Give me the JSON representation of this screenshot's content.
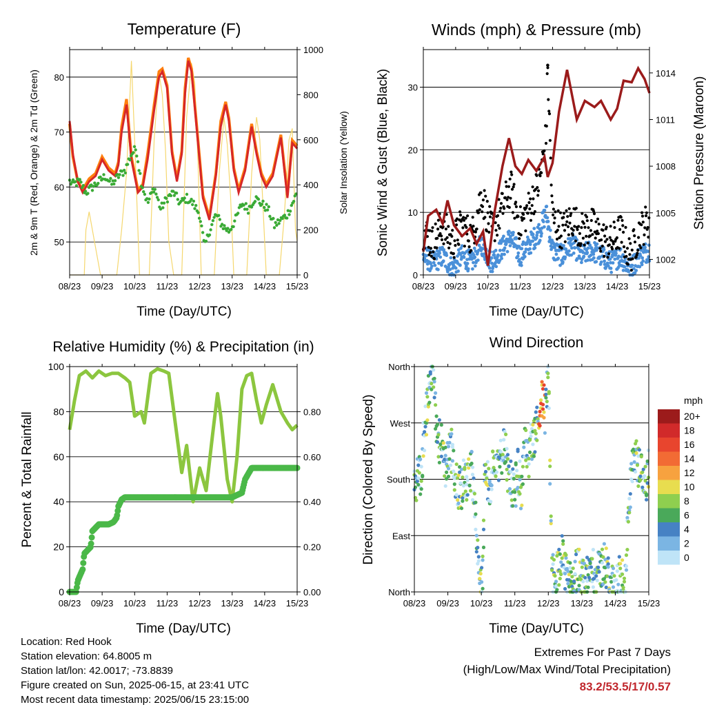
{
  "colors": {
    "temp_2m": "#d62728",
    "temp_9m": "#ff7f0e",
    "dewpoint": "#3aaa35",
    "solar": "#f5d76e",
    "wind": "#4a90d9",
    "gust": "#000000",
    "pressure": "#9b1b1b",
    "rh": "#8cc63f",
    "precip": "#4ab848",
    "extremes_text": "#c0272d"
  },
  "chart_data": [
    {
      "id": "temp",
      "type": "line",
      "title": "Temperature (F)",
      "xlabel": "Time (Day/UTC)",
      "ylabel": "2m & 9m T (Red, Orange) & 2m Td (Green)",
      "y2label": "Solar Insolation (Yellow)",
      "x_ticks": [
        "08/23",
        "09/23",
        "10/23",
        "11/23",
        "12/23",
        "13/23",
        "14/23",
        "15/23"
      ],
      "xlim": [
        0,
        7
      ],
      "ylim": [
        44,
        85
      ],
      "yticks": [
        50,
        60,
        70,
        80
      ],
      "y2lim": [
        0,
        1000
      ],
      "y2ticks": [
        0,
        200,
        400,
        600,
        800,
        1000
      ],
      "grid": true,
      "series": [
        {
          "name": "2m T (Red)",
          "axis": "left",
          "x": [
            0,
            0.1,
            0.25,
            0.4,
            0.6,
            0.8,
            1.0,
            1.2,
            1.4,
            1.5,
            1.6,
            1.75,
            1.9,
            2.1,
            2.25,
            2.4,
            2.6,
            2.75,
            2.85,
            3.0,
            3.15,
            3.3,
            3.45,
            3.55,
            3.65,
            3.75,
            3.95,
            4.1,
            4.3,
            4.5,
            4.65,
            4.8,
            4.9,
            5.05,
            5.2,
            5.4,
            5.6,
            5.75,
            5.9,
            6.05,
            6.25,
            6.5,
            6.7,
            6.85,
            7.0
          ],
          "values": [
            72,
            66,
            61,
            59,
            61,
            62,
            65,
            63,
            62,
            64,
            70,
            75,
            65,
            59,
            60,
            65,
            74,
            80,
            81,
            78,
            66,
            61,
            66,
            77,
            83,
            81,
            68,
            58,
            54,
            62,
            71,
            75,
            72,
            63,
            59,
            63,
            71,
            66,
            62,
            60,
            62,
            69,
            58,
            68,
            67
          ]
        },
        {
          "name": "9m T (Orange)",
          "axis": "left",
          "x": [
            0,
            0.1,
            0.25,
            0.4,
            0.6,
            0.8,
            1.0,
            1.2,
            1.4,
            1.5,
            1.6,
            1.75,
            1.9,
            2.1,
            2.25,
            2.4,
            2.6,
            2.75,
            2.85,
            3.0,
            3.15,
            3.3,
            3.45,
            3.55,
            3.65,
            3.75,
            3.95,
            4.1,
            4.3,
            4.5,
            4.65,
            4.8,
            4.9,
            5.05,
            5.2,
            5.4,
            5.6,
            5.75,
            5.9,
            6.05,
            6.25,
            6.5,
            6.7,
            6.85,
            7.0
          ],
          "values": [
            71.5,
            65.5,
            61,
            59.5,
            61.5,
            62.5,
            65.5,
            63.5,
            62.5,
            64.5,
            71,
            76,
            65.5,
            59.5,
            60.5,
            66,
            75,
            81,
            81.5,
            78.5,
            66.5,
            61.5,
            66.5,
            78,
            83.5,
            81.5,
            68.5,
            58.5,
            54.5,
            62.5,
            72,
            75.5,
            72.5,
            63.5,
            59.5,
            63.5,
            71.5,
            66.5,
            62.5,
            60.5,
            62.5,
            69.5,
            58.5,
            68.5,
            67.5
          ]
        },
        {
          "name": "2m Td (Green)",
          "axis": "left",
          "x": [
            0,
            0.1,
            0.3,
            0.5,
            0.7,
            0.9,
            1.1,
            1.3,
            1.5,
            1.7,
            1.9,
            2.05,
            2.2,
            2.4,
            2.6,
            2.8,
            3.0,
            3.2,
            3.4,
            3.6,
            3.8,
            4.0,
            4.15,
            4.3,
            4.5,
            4.7,
            4.9,
            5.1,
            5.3,
            5.5,
            5.7,
            5.9,
            6.1,
            6.3,
            6.5,
            6.7,
            6.85,
            7.0
          ],
          "values": [
            61,
            60.5,
            61,
            59,
            60,
            61,
            62,
            60.5,
            62,
            63,
            66,
            67,
            61,
            57,
            60,
            56,
            58,
            59,
            57,
            58,
            57,
            55,
            49,
            52,
            55,
            53,
            52,
            54,
            57,
            56,
            58,
            57,
            56,
            53,
            54,
            55,
            57,
            59
          ]
        },
        {
          "name": "Solar Insolation (Yellow)",
          "axis": "right",
          "x": [
            0,
            0.45,
            0.5,
            0.6,
            0.7,
            0.8,
            0.95,
            1.45,
            1.6,
            1.75,
            1.9,
            2.0,
            2.15,
            2.45,
            2.6,
            2.75,
            2.85,
            2.95,
            3.05,
            3.2,
            3.45,
            3.6,
            3.75,
            3.85,
            3.95,
            4.05,
            4.45,
            4.6,
            4.75,
            4.85,
            4.95,
            5.05,
            5.45,
            5.6,
            5.75,
            5.85,
            5.95,
            6.05,
            6.45,
            6.6,
            6.75,
            6.85,
            6.95,
            7.0
          ],
          "values": [
            0,
            0,
            200,
            280,
            200,
            120,
            0,
            0,
            200,
            450,
            950,
            600,
            0,
            0,
            600,
            900,
            800,
            550,
            150,
            0,
            0,
            700,
            940,
            850,
            500,
            0,
            0,
            450,
            700,
            580,
            350,
            0,
            0,
            450,
            700,
            600,
            300,
            0,
            0,
            250,
            600,
            650,
            200,
            150
          ]
        }
      ]
    },
    {
      "id": "wind",
      "type": "scatter",
      "title": "Winds (mph) & Pressure (mb)",
      "xlabel": "Time (Day/UTC)",
      "ylabel": "Sonic Wind & Gust (Blue, Black)",
      "y2label": "Station Pressure (Maroon)",
      "x_ticks": [
        "08/23",
        "09/23",
        "10/23",
        "11/23",
        "12/23",
        "13/23",
        "14/23",
        "15/23"
      ],
      "xlim": [
        0,
        7
      ],
      "ylim": [
        0,
        36
      ],
      "yticks": [
        0,
        10,
        20,
        30
      ],
      "y2lim": [
        1001.0,
        1015.5
      ],
      "y2ticks": [
        1002,
        1005,
        1008,
        1011,
        1014
      ],
      "grid": true,
      "series": [
        {
          "name": "Sonic Wind (Blue)",
          "axis": "left",
          "x": [
            0,
            0.3,
            0.6,
            0.9,
            1.2,
            1.5,
            1.8,
            2.1,
            2.4,
            2.7,
            3.0,
            3.3,
            3.6,
            3.8,
            4.0,
            4.3,
            4.6,
            4.9,
            5.2,
            5.5,
            5.8,
            6.1,
            6.4,
            6.7,
            7.0
          ],
          "values": [
            3,
            2,
            3,
            1,
            3,
            2,
            5,
            2,
            4,
            6,
            3,
            5,
            7,
            10,
            4,
            3,
            5,
            3,
            4,
            3,
            2,
            3,
            1,
            3,
            4
          ]
        },
        {
          "name": "Gust (Black)",
          "axis": "left",
          "x": [
            0,
            0.3,
            0.6,
            0.9,
            1.2,
            1.5,
            1.8,
            2.1,
            2.4,
            2.7,
            3.0,
            3.3,
            3.6,
            3.8,
            3.85,
            4.0,
            4.3,
            4.6,
            4.9,
            5.2,
            5.5,
            5.8,
            6.1,
            6.4,
            6.7,
            7.0
          ],
          "values": [
            7,
            5,
            8,
            5,
            8,
            6,
            13,
            7,
            10,
            14,
            8,
            11,
            15,
            22,
            33,
            9,
            7,
            9,
            7,
            8,
            6,
            5,
            7,
            3,
            7,
            9
          ]
        },
        {
          "name": "Station Pressure (Maroon)",
          "axis": "right",
          "x": [
            0,
            0.15,
            0.4,
            0.6,
            0.75,
            0.95,
            1.2,
            1.45,
            1.65,
            1.85,
            2.0,
            2.2,
            2.45,
            2.65,
            2.85,
            3.05,
            3.25,
            3.5,
            3.75,
            3.85,
            4.0,
            4.2,
            4.45,
            4.75,
            5.0,
            5.3,
            5.5,
            5.8,
            6.0,
            6.2,
            6.45,
            6.65,
            6.85,
            7.0
          ],
          "values": [
            1002.5,
            1004.8,
            1005.2,
            1004.3,
            1005.8,
            1004.2,
            1003.5,
            1004.0,
            1003.0,
            1003.8,
            1001.6,
            1005.0,
            1008.0,
            1009.8,
            1008.0,
            1007.5,
            1008.4,
            1007.7,
            1008.6,
            1007.3,
            1008.2,
            1011.5,
            1014.2,
            1011.0,
            1012.2,
            1011.8,
            1012.2,
            1011.0,
            1011.7,
            1013.5,
            1013.4,
            1014.3,
            1013.6,
            1012.7
          ]
        }
      ]
    },
    {
      "id": "rh",
      "type": "line",
      "title": "Relative Humidity (%) & Precipitation (in)",
      "xlabel": "Time (Day/UTC)",
      "ylabel": "Percent & Total Rainfall",
      "x_ticks": [
        "08/23",
        "09/23",
        "10/23",
        "11/23",
        "12/23",
        "13/23",
        "14/23",
        "15/23"
      ],
      "xlim": [
        0,
        7
      ],
      "ylim": [
        0,
        100
      ],
      "yticks": [
        0,
        20,
        40,
        60,
        80,
        100
      ],
      "y2lim": [
        0,
        1
      ],
      "y2ticks": [
        "0.00",
        "0.20",
        "0.40",
        "0.60",
        "0.80"
      ],
      "grid": true,
      "series": [
        {
          "name": "Relative Humidity",
          "axis": "left",
          "x": [
            0,
            0.15,
            0.3,
            0.5,
            0.7,
            0.9,
            1.1,
            1.3,
            1.5,
            1.7,
            1.85,
            2.0,
            2.2,
            2.3,
            2.5,
            2.7,
            2.9,
            3.05,
            3.25,
            3.45,
            3.6,
            3.8,
            4.0,
            4.2,
            4.4,
            4.55,
            4.65,
            4.85,
            5.0,
            5.15,
            5.3,
            5.45,
            5.6,
            5.75,
            5.9,
            6.05,
            6.25,
            6.5,
            6.7,
            6.85,
            7.0
          ],
          "values": [
            72,
            85,
            96,
            98,
            95,
            98,
            96,
            97,
            97,
            95,
            93,
            78,
            80,
            75,
            97,
            99,
            98,
            97,
            75,
            53,
            65,
            40,
            55,
            45,
            70,
            88,
            78,
            50,
            40,
            60,
            90,
            96,
            97,
            85,
            75,
            83,
            92,
            80,
            75,
            72,
            74
          ]
        },
        {
          "name": "Total Precipitation",
          "axis": "right",
          "x": [
            0,
            0.2,
            0.25,
            0.4,
            0.45,
            0.65,
            0.7,
            0.9,
            0.95,
            1.2,
            1.35,
            1.45,
            1.5,
            1.6,
            1.7,
            2.0,
            2.5,
            3.0,
            3.5,
            4.0,
            4.5,
            5.0,
            5.3,
            5.4,
            5.6,
            6.0,
            6.5,
            7.0
          ],
          "values": [
            0,
            0,
            0.05,
            0.1,
            0.17,
            0.2,
            0.27,
            0.3,
            0.3,
            0.3,
            0.31,
            0.33,
            0.38,
            0.41,
            0.42,
            0.42,
            0.42,
            0.42,
            0.42,
            0.42,
            0.42,
            0.42,
            0.44,
            0.5,
            0.55,
            0.55,
            0.55,
            0.55
          ]
        }
      ]
    },
    {
      "id": "dir",
      "type": "scatter",
      "title": "Wind Direction",
      "xlabel": "Time (Day/UTC)",
      "ylabel": "Direction (Colored By Speed)",
      "x_ticks": [
        "08/23",
        "09/23",
        "10/23",
        "11/23",
        "12/23",
        "13/23",
        "14/23",
        "15/23"
      ],
      "xlim": [
        0,
        7
      ],
      "ylim": [
        0,
        360
      ],
      "y_labels": [
        {
          "value": 0,
          "label": "North"
        },
        {
          "value": 90,
          "label": "East"
        },
        {
          "value": 180,
          "label": "South"
        },
        {
          "value": 270,
          "label": "West"
        },
        {
          "value": 360,
          "label": "North"
        }
      ],
      "colorbar": {
        "unit": "mph",
        "labels": [
          "20+",
          "18",
          "16",
          "14",
          "12",
          "10",
          "8",
          "6",
          "4",
          "2",
          "0"
        ],
        "colors": [
          "#9c1b1b",
          "#d12a2a",
          "#e8452e",
          "#f26b34",
          "#f7a23f",
          "#e8dd4f",
          "#8fcf4f",
          "#4aa95a",
          "#4682c4",
          "#7bb5e3",
          "#bfe4f7"
        ]
      },
      "series": [
        {
          "name": "Direction",
          "x": [
            0.05,
            0.2,
            0.3,
            0.4,
            0.45,
            0.5,
            0.55,
            0.6,
            0.7,
            0.8,
            0.9,
            1.0,
            1.1,
            1.2,
            1.3,
            1.4,
            1.5,
            1.55,
            1.6,
            1.65,
            1.7,
            1.8,
            1.9,
            2.0,
            2.05,
            2.1,
            2.2,
            2.3,
            2.4,
            2.5,
            2.6,
            2.65,
            2.7,
            2.75,
            2.8,
            2.9,
            3.0,
            3.1,
            3.2,
            3.3,
            3.4,
            3.5,
            3.6,
            3.7,
            3.75,
            3.8,
            3.85,
            3.9,
            4.0,
            4.1,
            4.2,
            4.3,
            4.4,
            4.5,
            4.6,
            4.7,
            4.8,
            4.9,
            5.0,
            5.1,
            5.2,
            5.3,
            5.4,
            5.5,
            5.6,
            5.7,
            5.8,
            5.9,
            6.0,
            6.1,
            6.2,
            6.3,
            6.4,
            6.5,
            6.6,
            6.7,
            6.8,
            6.9,
            7.0
          ],
          "values": [
            180,
            190,
            260,
            300,
            330,
            350,
            340,
            320,
            230,
            250,
            200,
            210,
            230,
            190,
            170,
            160,
            200,
            180,
            190,
            170,
            200,
            130,
            60,
            10,
            30,
            200,
            180,
            170,
            220,
            200,
            220,
            240,
            230,
            210,
            190,
            170,
            160,
            200,
            150,
            240,
            210,
            240,
            250,
            290,
            300,
            310,
            310,
            280,
            350,
            30,
            20,
            40,
            60,
            30,
            20,
            10,
            30,
            40,
            20,
            10,
            30,
            50,
            20,
            30,
            40,
            50,
            20,
            10,
            5,
            20,
            30,
            10,
            150,
            190,
            220,
            200,
            180,
            170,
            200
          ]
        }
      ]
    }
  ],
  "footer": {
    "location": "Location: Red Hook",
    "elevation": "Station elevation: 64.8005 m",
    "latlon": "Station lat/lon: 42.0017; -73.8839",
    "created": "Figure created on Sun, 2025-06-15, at 23:41 UTC",
    "recent": "Most recent data timestamp: 2025/06/15 23:15:00"
  },
  "extremes": {
    "title": "Extremes For Past 7 Days",
    "subtitle": "(High/Low/Max Wind/Total Precipitation)",
    "values": "83.2/53.5/17/0.57"
  }
}
